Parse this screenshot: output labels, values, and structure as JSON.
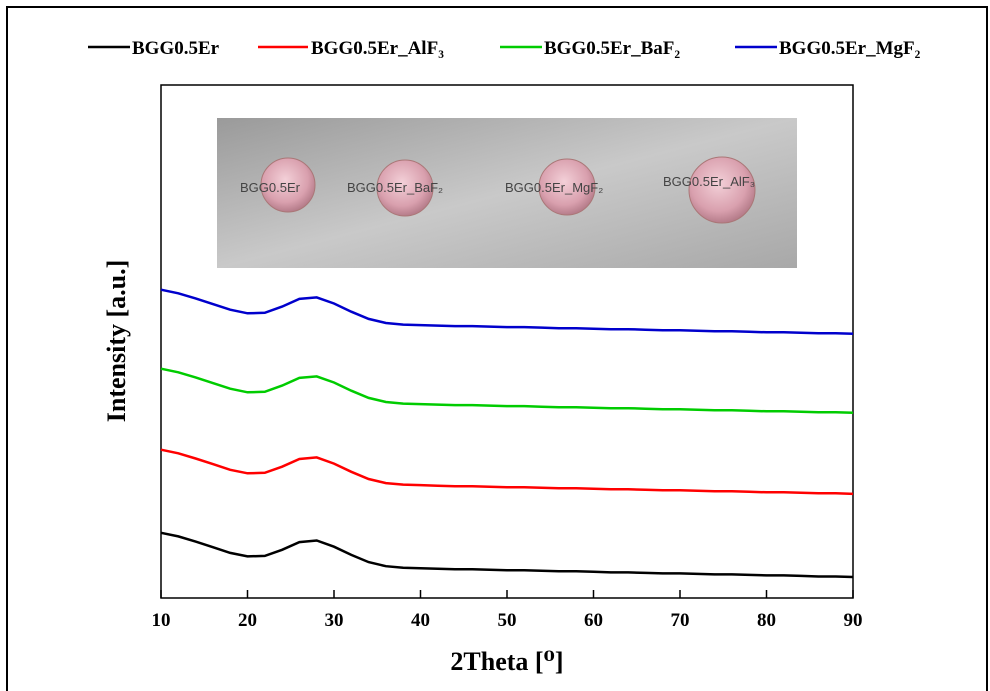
{
  "chart_data": {
    "type": "line",
    "x_label": "2Theta [⁰]",
    "y_label": "Intensity [a.u.]",
    "xlim": [
      10,
      90
    ],
    "xticks": [
      10,
      20,
      30,
      40,
      50,
      60,
      70,
      80,
      90
    ],
    "ylim": [
      0,
      100
    ],
    "legend_position": "top",
    "inset_labels": [
      "BGG0.5Er",
      "BGG0.5Er_BaF₂",
      "BGG0.5Er_MgF₂",
      "BGG0.5Er_AlF₃"
    ],
    "x": [
      10,
      12,
      14,
      16,
      18,
      20,
      22,
      24,
      26,
      28,
      30,
      32,
      34,
      36,
      38,
      40,
      42,
      44,
      46,
      48,
      50,
      52,
      54,
      56,
      58,
      60,
      62,
      64,
      66,
      68,
      70,
      72,
      74,
      76,
      78,
      80,
      82,
      84,
      86,
      88,
      90
    ],
    "series": [
      {
        "name": "BGG0.5Er",
        "color": "#000000",
        "values": [
          12.7,
          12.0,
          11.0,
          9.9,
          8.8,
          8.1,
          8.2,
          9.4,
          10.9,
          11.2,
          10.0,
          8.4,
          7.0,
          6.2,
          5.9,
          5.8,
          5.7,
          5.6,
          5.6,
          5.5,
          5.4,
          5.4,
          5.3,
          5.2,
          5.2,
          5.1,
          5.0,
          5.0,
          4.9,
          4.8,
          4.8,
          4.7,
          4.6,
          4.6,
          4.5,
          4.4,
          4.4,
          4.3,
          4.2,
          4.2,
          4.1
        ]
      },
      {
        "name": "BGG0.5Er_AlF₃",
        "color": "#ff0000",
        "values": [
          28.9,
          28.2,
          27.2,
          26.1,
          25.0,
          24.3,
          24.4,
          25.6,
          27.1,
          27.4,
          26.2,
          24.6,
          23.2,
          22.4,
          22.1,
          22.0,
          21.9,
          21.8,
          21.8,
          21.7,
          21.6,
          21.6,
          21.5,
          21.4,
          21.4,
          21.3,
          21.2,
          21.2,
          21.1,
          21.0,
          21.0,
          20.9,
          20.8,
          20.8,
          20.7,
          20.6,
          20.6,
          20.5,
          20.4,
          20.4,
          20.3
        ]
      },
      {
        "name": "BGG0.5Er_BaF₂",
        "color": "#00cc00",
        "values": [
          44.7,
          44.0,
          43.0,
          41.9,
          40.8,
          40.1,
          40.2,
          41.4,
          42.9,
          43.2,
          42.0,
          40.4,
          39.0,
          38.2,
          37.9,
          37.8,
          37.7,
          37.6,
          37.6,
          37.5,
          37.4,
          37.4,
          37.3,
          37.2,
          37.2,
          37.1,
          37.0,
          37.0,
          36.9,
          36.8,
          36.8,
          36.7,
          36.6,
          36.6,
          36.5,
          36.4,
          36.4,
          36.3,
          36.2,
          36.2,
          36.1
        ]
      },
      {
        "name": "BGG0.5Er_MgF₂",
        "color": "#0000cc",
        "values": [
          60.1,
          59.4,
          58.4,
          57.3,
          56.2,
          55.5,
          55.6,
          56.8,
          58.3,
          58.6,
          57.4,
          55.8,
          54.4,
          53.6,
          53.3,
          53.2,
          53.1,
          53.0,
          53.0,
          52.9,
          52.8,
          52.8,
          52.7,
          52.6,
          52.6,
          52.5,
          52.4,
          52.4,
          52.3,
          52.2,
          52.2,
          52.1,
          52.0,
          52.0,
          51.9,
          51.8,
          51.8,
          51.7,
          51.6,
          51.6,
          51.5
        ]
      }
    ]
  }
}
